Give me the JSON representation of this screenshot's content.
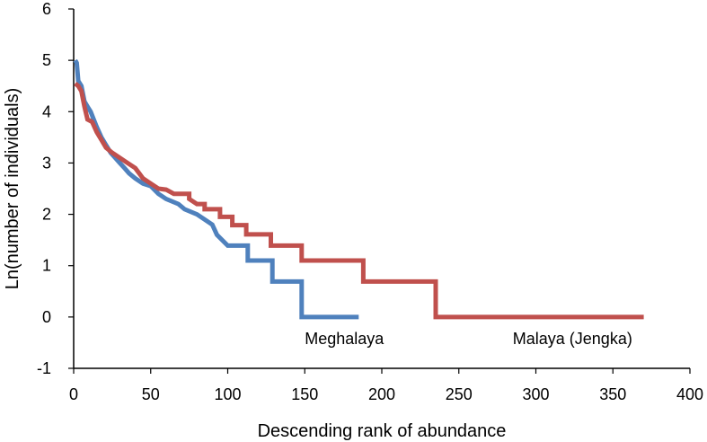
{
  "chart_data": {
    "type": "line",
    "title": "",
    "xlabel": "Descending rank of abundance",
    "ylabel": "Ln(number of individuals)",
    "xlim": [
      0,
      400
    ],
    "ylim": [
      -1,
      6
    ],
    "xticks": [
      0,
      50,
      100,
      150,
      200,
      250,
      300,
      350,
      400
    ],
    "yticks": [
      -1,
      0,
      1,
      2,
      3,
      4,
      5,
      6
    ],
    "xtick_labels": [
      "0",
      "50",
      "100",
      "150",
      "200",
      "250",
      "300",
      "350",
      "400"
    ],
    "ytick_labels": [
      "-1",
      "0",
      "1",
      "2",
      "3",
      "4",
      "5",
      "6"
    ],
    "grid": false,
    "legend": "none (inline labels)",
    "series": [
      {
        "name": "Meghalaya",
        "color": "#4f81bd",
        "points": [
          [
            1,
            5.0
          ],
          [
            2,
            4.95
          ],
          [
            3,
            4.6
          ],
          [
            5,
            4.5
          ],
          [
            7,
            4.2
          ],
          [
            9,
            4.1
          ],
          [
            11,
            4.0
          ],
          [
            13,
            3.85
          ],
          [
            15,
            3.7
          ],
          [
            18,
            3.5
          ],
          [
            21,
            3.35
          ],
          [
            24,
            3.2
          ],
          [
            27,
            3.1
          ],
          [
            30,
            3.0
          ],
          [
            33,
            2.9
          ],
          [
            36,
            2.8
          ],
          [
            40,
            2.7
          ],
          [
            45,
            2.6
          ],
          [
            50,
            2.55
          ],
          [
            55,
            2.4
          ],
          [
            60,
            2.3
          ],
          [
            68,
            2.2
          ],
          [
            72,
            2.1
          ],
          [
            80,
            2.0
          ],
          [
            85,
            1.9
          ],
          [
            90,
            1.8
          ],
          [
            93,
            1.6
          ],
          [
            100,
            1.39
          ],
          [
            113,
            1.39
          ],
          [
            113,
            1.1
          ],
          [
            129,
            1.1
          ],
          [
            129,
            0.69
          ],
          [
            148,
            0.69
          ],
          [
            148,
            0.0
          ],
          [
            185,
            0.0
          ]
        ]
      },
      {
        "name": "Malaya (Jengka)",
        "color": "#c0504d",
        "points": [
          [
            1,
            4.55
          ],
          [
            3,
            4.5
          ],
          [
            5,
            4.4
          ],
          [
            7,
            4.1
          ],
          [
            9,
            3.85
          ],
          [
            12,
            3.8
          ],
          [
            15,
            3.6
          ],
          [
            18,
            3.45
          ],
          [
            21,
            3.3
          ],
          [
            25,
            3.2
          ],
          [
            30,
            3.1
          ],
          [
            35,
            3.0
          ],
          [
            40,
            2.9
          ],
          [
            45,
            2.7
          ],
          [
            50,
            2.6
          ],
          [
            55,
            2.5
          ],
          [
            60,
            2.48
          ],
          [
            65,
            2.4
          ],
          [
            75,
            2.4
          ],
          [
            75,
            2.3
          ],
          [
            80,
            2.2
          ],
          [
            85,
            2.2
          ],
          [
            85,
            2.1
          ],
          [
            95,
            2.1
          ],
          [
            95,
            1.95
          ],
          [
            103,
            1.95
          ],
          [
            103,
            1.79
          ],
          [
            112,
            1.79
          ],
          [
            112,
            1.61
          ],
          [
            128,
            1.61
          ],
          [
            128,
            1.39
          ],
          [
            148,
            1.39
          ],
          [
            148,
            1.1
          ],
          [
            188,
            1.1
          ],
          [
            188,
            0.69
          ],
          [
            235,
            0.69
          ],
          [
            235,
            0.0
          ],
          [
            370,
            0.0
          ]
        ]
      }
    ],
    "annotations": [
      {
        "text": "Meghalaya",
        "x": 150,
        "y": -0.18
      },
      {
        "text": "Malaya (Jengka)",
        "x": 285,
        "y": -0.18
      }
    ]
  }
}
